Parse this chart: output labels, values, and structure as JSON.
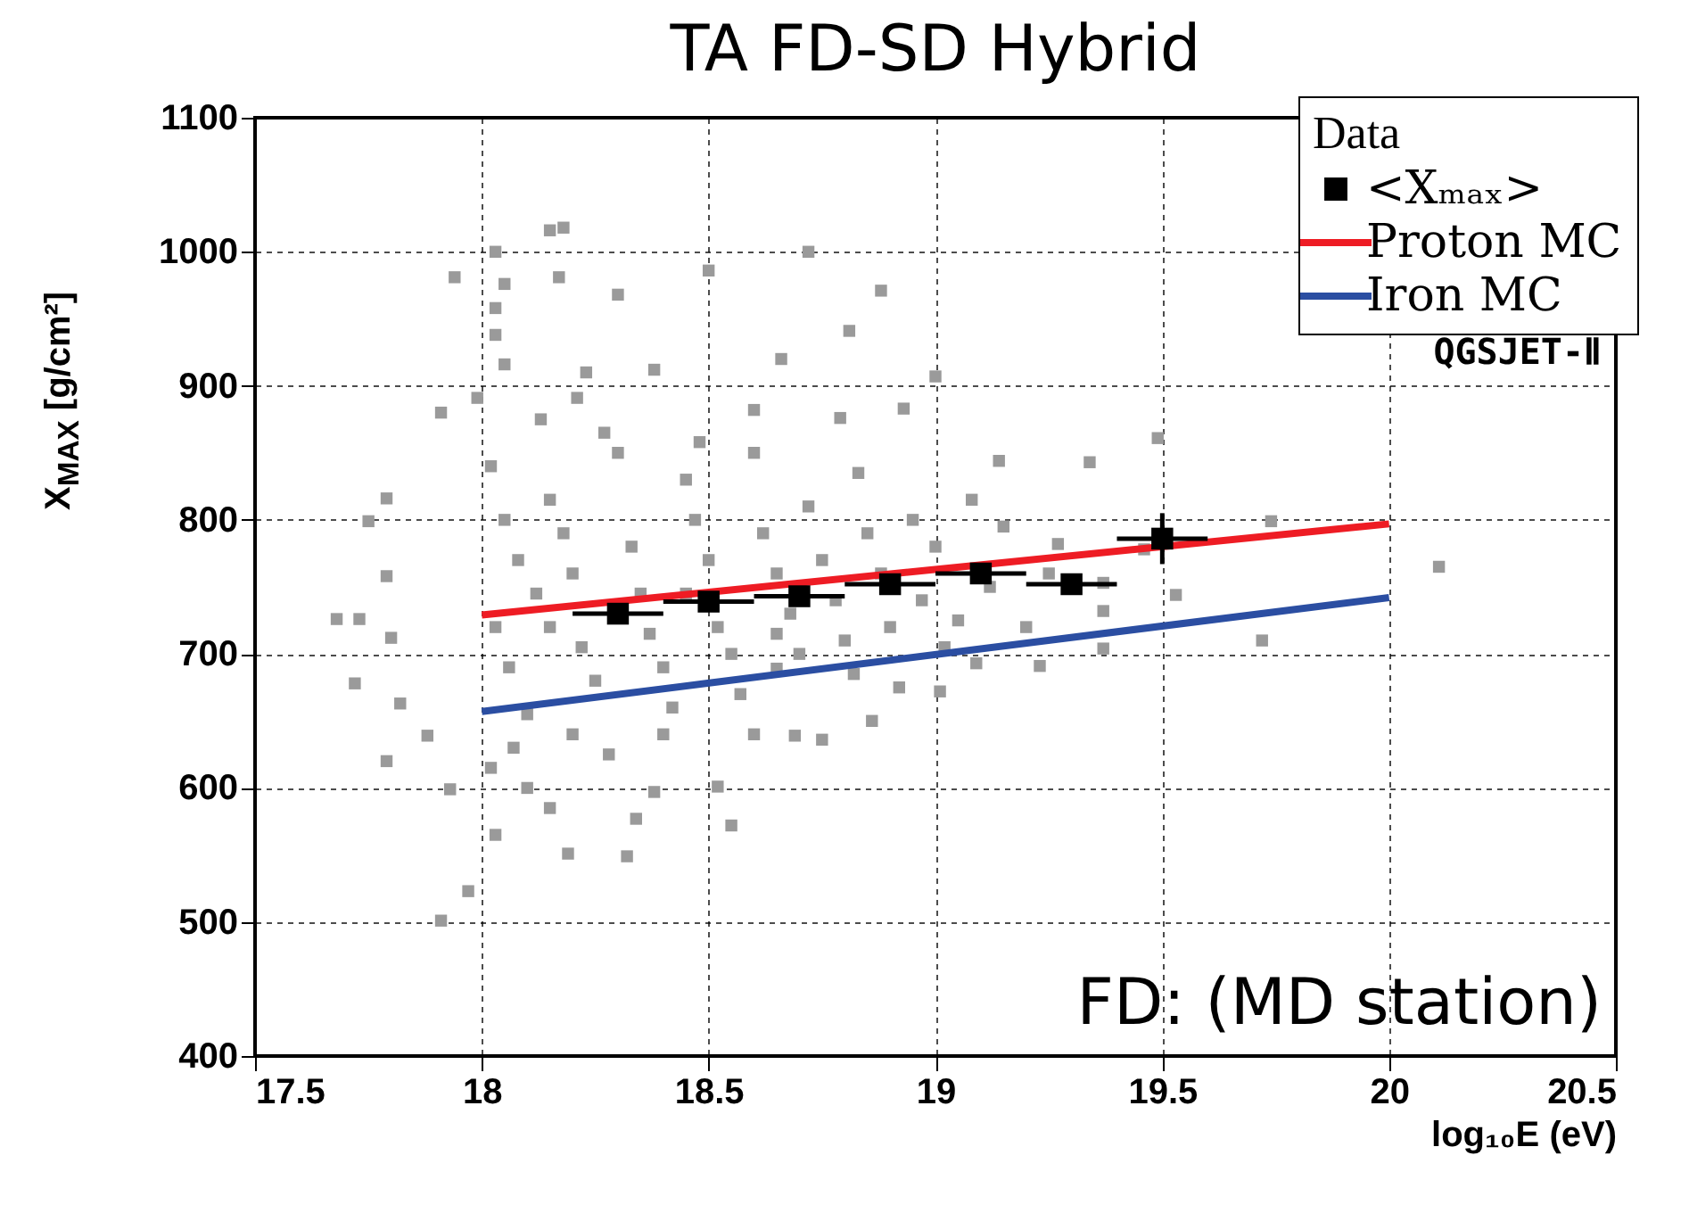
{
  "chart_data": {
    "type": "scatter",
    "title": "TA FD-SD Hybrid",
    "xlabel": "log₁₀E (eV)",
    "ylabel": "X$_{MAX}$  [g/cm²]",
    "legend_title": "Data",
    "annotations": [
      "QGSJET-Ⅱ",
      "FD: (MD station)"
    ],
    "xlim": [
      17.5,
      20.5
    ],
    "xticks": [
      17.5,
      18,
      18.5,
      19,
      19.5,
      20,
      20.5
    ],
    "ylim": [
      400,
      1100
    ],
    "yticks": [
      400,
      500,
      600,
      700,
      800,
      900,
      1000,
      1100
    ],
    "grid": true,
    "legend": "top right",
    "series": [
      {
        "type": "scatter",
        "color": "#9a9a9a",
        "marker": "square",
        "x": [
          17.94,
          18.03,
          18.05,
          18.03,
          18.03,
          18.05,
          18.15,
          18.18,
          18.17,
          18.3,
          18.23,
          18.38,
          18.5,
          18.66,
          18.72,
          18.81,
          18.88,
          18.93,
          19.0,
          19.49,
          17.91,
          17.99,
          18.21,
          18.6,
          18.79,
          17.91,
          17.97,
          17.72,
          17.68,
          17.73,
          17.75,
          17.79,
          17.79,
          17.79,
          17.8,
          17.82,
          17.88,
          17.93,
          18.03,
          18.19,
          18.32,
          18.34,
          18.55,
          18.38,
          18.52,
          18.69,
          18.75,
          18.86,
          19.01,
          19.09,
          19.23,
          19.37,
          19.37,
          19.53,
          19.72,
          19.74,
          20.11,
          19.34,
          19.14,
          19.27,
          19.46,
          19.37,
          19.02,
          18.92,
          18.82,
          18.65,
          18.02,
          18.05,
          18.08,
          18.03,
          18.06,
          18.1,
          18.02,
          18.07,
          18.12,
          18.15,
          18.18,
          18.2,
          18.22,
          18.25,
          18.2,
          18.28,
          18.3,
          18.33,
          18.35,
          18.37,
          18.4,
          18.42,
          18.45,
          18.47,
          18.5,
          18.52,
          18.55,
          18.57,
          18.6,
          18.6,
          18.62,
          18.65,
          18.68,
          18.7,
          18.72,
          18.75,
          18.78,
          18.8,
          18.83,
          18.85,
          18.88,
          18.9,
          18.95,
          18.97,
          19.0,
          19.05,
          19.08,
          19.12,
          19.15,
          19.2,
          19.25,
          18.13,
          18.27,
          18.48,
          18.1,
          18.15,
          18.4,
          18.15,
          18.45,
          18.65
        ],
        "values": [
          981,
          1000,
          976,
          958,
          938,
          916,
          1016,
          1018,
          981,
          968,
          910,
          912,
          986,
          920,
          1000,
          941,
          971,
          883,
          907,
          861,
          880,
          891,
          891,
          882,
          876,
          501,
          523,
          678,
          726,
          726,
          799,
          816,
          758,
          620,
          712,
          663,
          639,
          599,
          565,
          551,
          549,
          577,
          572,
          597,
          601,
          639,
          636,
          650,
          672,
          693,
          691,
          704,
          732,
          744,
          710,
          799,
          765,
          843,
          844,
          782,
          778,
          753,
          705,
          675,
          685,
          689,
          840,
          800,
          770,
          720,
          690,
          655,
          615,
          630,
          745,
          815,
          790,
          760,
          705,
          680,
          640,
          625,
          850,
          780,
          745,
          715,
          690,
          660,
          830,
          800,
          770,
          720,
          700,
          670,
          640,
          850,
          790,
          760,
          730,
          700,
          810,
          770,
          740,
          710,
          835,
          790,
          760,
          720,
          800,
          740,
          780,
          725,
          815,
          750,
          795,
          720,
          760,
          875,
          865,
          858,
          600,
          585,
          640,
          720,
          745,
          715
        ]
      },
      {
        "type": "scatter",
        "name": "<Xₘₐₓ>",
        "color": "#000000",
        "marker": "square",
        "x": [
          18.3,
          18.5,
          18.7,
          18.9,
          19.1,
          19.3,
          19.5
        ],
        "values": [
          730,
          739,
          743,
          752,
          760,
          752,
          786
        ],
        "errors": [
          4,
          4,
          5,
          6,
          7,
          7,
          19
        ],
        "xerrors": [
          0.1,
          0.1,
          0.1,
          0.1,
          0.1,
          0.1,
          0.1
        ]
      },
      {
        "type": "line",
        "name": "Proton MC",
        "color": "#ee1c24",
        "x": [
          18,
          20
        ],
        "values": [
          729,
          797
        ]
      },
      {
        "type": "line",
        "name": "Iron MC",
        "color": "#2b4ea2",
        "x": [
          18,
          20
        ],
        "values": [
          657,
          742
        ]
      }
    ]
  }
}
